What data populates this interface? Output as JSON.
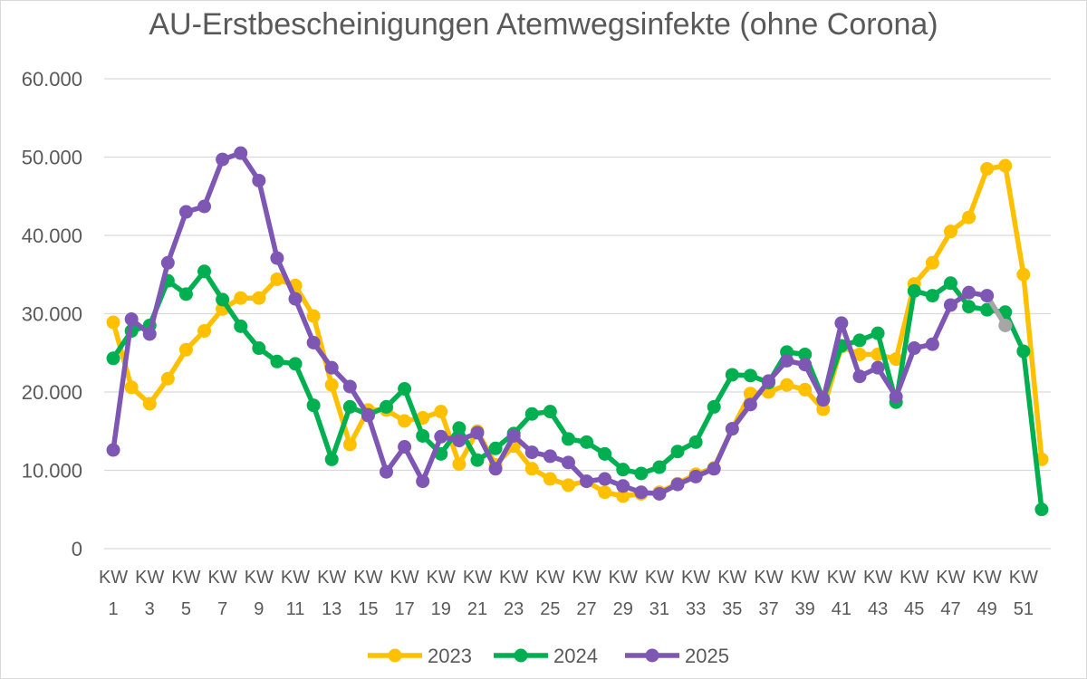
{
  "chart_data": {
    "type": "line",
    "title": "AU-Erstbescheinigungen Atemwegsinfekte (ohne Corona)",
    "xlabel": "",
    "ylabel": "",
    "ylim": [
      0,
      60000
    ],
    "y_ticks": [
      "0",
      "10.000",
      "20.000",
      "30.000",
      "40.000",
      "50.000",
      "60.000"
    ],
    "x_tick_labels": [
      {
        "top": "KW",
        "bottom": "1"
      },
      {
        "top": "KW",
        "bottom": "3"
      },
      {
        "top": "KW",
        "bottom": "5"
      },
      {
        "top": "KW",
        "bottom": "7"
      },
      {
        "top": "KW",
        "bottom": "9"
      },
      {
        "top": "KW",
        "bottom": "11"
      },
      {
        "top": "KW",
        "bottom": "13"
      },
      {
        "top": "KW",
        "bottom": "15"
      },
      {
        "top": "KW",
        "bottom": "17"
      },
      {
        "top": "KW",
        "bottom": "19"
      },
      {
        "top": "KW",
        "bottom": "21"
      },
      {
        "top": "KW",
        "bottom": "23"
      },
      {
        "top": "KW",
        "bottom": "25"
      },
      {
        "top": "KW",
        "bottom": "27"
      },
      {
        "top": "KW",
        "bottom": "29"
      },
      {
        "top": "KW",
        "bottom": "31"
      },
      {
        "top": "KW",
        "bottom": "33"
      },
      {
        "top": "KW",
        "bottom": "35"
      },
      {
        "top": "KW",
        "bottom": "37"
      },
      {
        "top": "KW",
        "bottom": "39"
      },
      {
        "top": "KW",
        "bottom": "41"
      },
      {
        "top": "KW",
        "bottom": "43"
      },
      {
        "top": "KW",
        "bottom": "45"
      },
      {
        "top": "KW",
        "bottom": "47"
      },
      {
        "top": "KW",
        "bottom": "49"
      },
      {
        "top": "KW",
        "bottom": "51"
      }
    ],
    "x": [
      1,
      2,
      3,
      4,
      5,
      6,
      7,
      8,
      9,
      10,
      11,
      12,
      13,
      14,
      15,
      16,
      17,
      18,
      19,
      20,
      21,
      22,
      23,
      24,
      25,
      26,
      27,
      28,
      29,
      30,
      31,
      32,
      33,
      34,
      35,
      36,
      37,
      38,
      39,
      40,
      41,
      42,
      43,
      44,
      45,
      46,
      47,
      48,
      49,
      50,
      51,
      52
    ],
    "grid": true,
    "legend_position": "bottom",
    "series": [
      {
        "name": "2023",
        "color": "#FFC000",
        "values": [
          28900,
          20600,
          18500,
          21700,
          25400,
          27800,
          30600,
          32000,
          32000,
          34400,
          33600,
          29700,
          20900,
          13300,
          17700,
          17700,
          16300,
          16700,
          17500,
          10800,
          15000,
          10700,
          13100,
          10200,
          8900,
          8100,
          8600,
          7200,
          6700,
          7000,
          7200,
          8300,
          9500,
          10300,
          15300,
          19800,
          20000,
          20900,
          20300,
          17800,
          25800,
          24800,
          24800,
          24200,
          33800,
          36500,
          40500,
          42300,
          48500,
          48900,
          35000,
          11400
        ]
      },
      {
        "name": "2024",
        "color": "#00B050",
        "values": [
          24300,
          27800,
          28500,
          34200,
          32500,
          35400,
          31800,
          28400,
          25600,
          23900,
          23600,
          18300,
          11400,
          18100,
          17100,
          18100,
          20400,
          14400,
          12100,
          15400,
          11300,
          12800,
          14700,
          17200,
          17500,
          14000,
          13600,
          12100,
          10100,
          9600,
          10400,
          12400,
          13600,
          18100,
          22200,
          22100,
          21200,
          25100,
          24800,
          19100,
          25900,
          26600,
          27500,
          18700,
          32900,
          32300,
          33900,
          30900,
          30500,
          30200,
          25200,
          5000
        ]
      },
      {
        "name": "2025",
        "color": "#7E57B5",
        "values": [
          12600,
          29300,
          27400,
          36500,
          43000,
          43700,
          49700,
          50500,
          47000,
          37100,
          31900,
          26300,
          23100,
          20700,
          17000,
          9800,
          13000,
          8600,
          14300,
          13800,
          14800,
          10200,
          14400,
          12300,
          11800,
          11000,
          8600,
          8900,
          8000,
          7200,
          7000,
          8200,
          9200,
          10200,
          15300,
          18400,
          21400,
          24000,
          23500,
          19000,
          28800,
          22000,
          23100,
          19400,
          25600,
          26100,
          31100,
          32700,
          32300,
          28500,
          null,
          null
        ],
        "last_segment_color": "#A6A6A6"
      }
    ]
  }
}
